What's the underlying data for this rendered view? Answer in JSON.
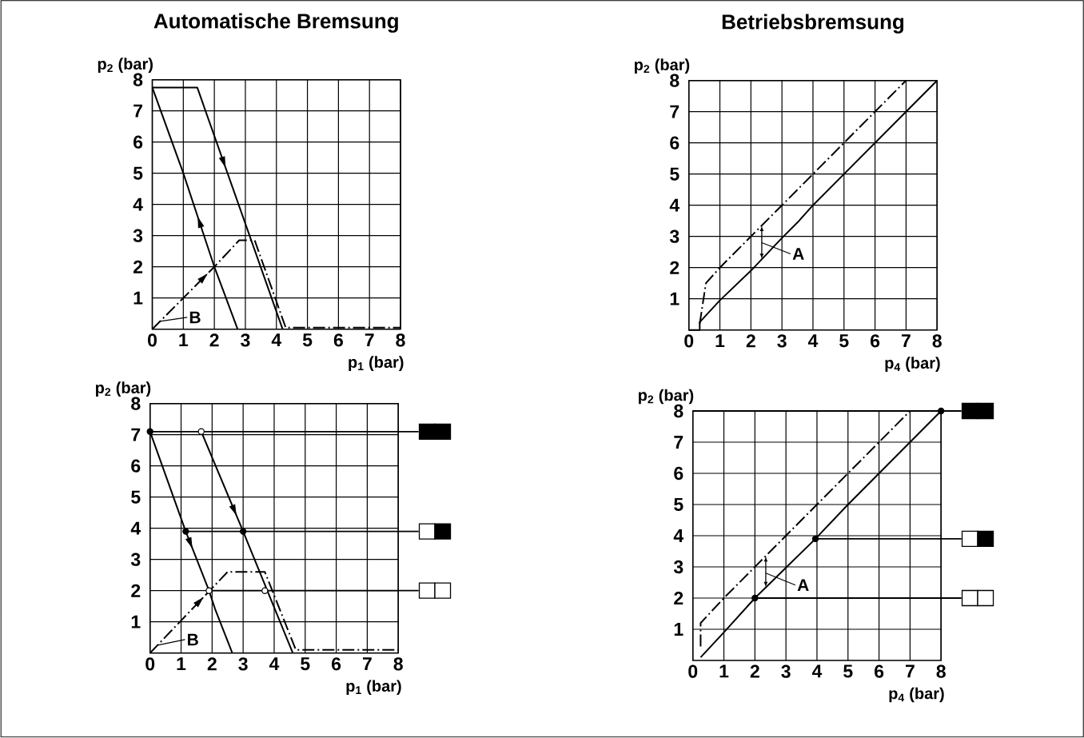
{
  "chart_data": [
    {
      "type": "line",
      "title": "Automatische Bremsung",
      "xlabel": "p$_{1}$ (bar)",
      "ylabel": "p$_{2}$ (bar)",
      "xlim": [
        0,
        8
      ],
      "ylim": [
        0,
        8
      ],
      "xticks": [
        0,
        1,
        2,
        3,
        4,
        5,
        6,
        7,
        8
      ],
      "yticks": [
        1,
        2,
        3,
        4,
        5,
        6,
        7,
        8
      ],
      "grid": true,
      "series": [
        {
          "color": "#000000",
          "line_style": "solid",
          "x": [
            0,
            1.45,
            4.2
          ],
          "values": [
            7.75,
            7.75,
            0
          ]
        },
        {
          "color": "#000000",
          "line_style": "solid",
          "x": [
            0,
            1,
            2,
            2.75
          ],
          "values": [
            7.75,
            5,
            2,
            0
          ]
        },
        {
          "color": "#000000",
          "line_style": "dashdot",
          "x": [
            0,
            2,
            2.8,
            3.3,
            4.3,
            8
          ],
          "values": [
            0,
            2,
            2.85,
            2.85,
            0.05,
            0.05
          ]
        }
      ],
      "annotations": [
        {
          "text": "B",
          "x": 0.25,
          "y": 0.25
        }
      ]
    },
    {
      "type": "line",
      "title": "Betriebsbremsung",
      "xlabel": "p$_{4}$ (bar)",
      "ylabel": "p$_{2}$ (bar)",
      "xlim": [
        0,
        8
      ],
      "ylim": [
        0,
        8
      ],
      "xticks": [
        0,
        1,
        2,
        3,
        4,
        5,
        6,
        7,
        8
      ],
      "yticks": [
        1,
        2,
        3,
        4,
        5,
        6,
        7,
        8
      ],
      "grid": true,
      "series": [
        {
          "color": "#000000",
          "line_style": "solid",
          "x": [
            0,
            0.35,
            0.35,
            1,
            2,
            3,
            3.55,
            4,
            8
          ],
          "values": [
            0,
            0,
            0.25,
            0.95,
            1.9,
            2.95,
            3.5,
            4,
            8
          ]
        },
        {
          "color": "#000000",
          "line_style": "dashdot",
          "x": [
            0.35,
            0.55,
            1,
            7
          ],
          "values": [
            0.2,
            1.5,
            2,
            8
          ]
        }
      ],
      "annotations": [
        "A"
      ]
    },
    {
      "type": "line",
      "xlabel": "p$_{1}$ (bar)",
      "ylabel": "p$_{2}$ (bar)",
      "xlim": [
        0,
        8
      ],
      "ylim": [
        0,
        8
      ],
      "xticks": [
        0,
        1,
        2,
        3,
        4,
        5,
        6,
        7,
        8
      ],
      "yticks": [
        1,
        2,
        3,
        4,
        5,
        6,
        7,
        8
      ],
      "grid": true,
      "series": [
        {
          "color": "#000000",
          "line_style": "solid",
          "x": [
            1.65,
            3,
            4.6
          ],
          "values": [
            7.1,
            3.9,
            0
          ]
        },
        {
          "color": "#000000",
          "line_style": "solid",
          "x": [
            0,
            1.15,
            1.9,
            2.1,
            2.65
          ],
          "values": [
            7.1,
            3.9,
            2,
            1.4,
            0
          ]
        },
        {
          "color": "#000000",
          "line_style": "dashdot",
          "x": [
            0,
            2.5,
            3.7,
            4.7,
            8
          ],
          "values": [
            0,
            2.6,
            2.6,
            0.1,
            0.1
          ]
        },
        {
          "type": "scatter",
          "marker": "circle",
          "color": "#000000",
          "x": [
            0,
            1.15,
            3
          ],
          "values": [
            7.1,
            3.9,
            3.9
          ]
        },
        {
          "type": "scatter",
          "marker": "circle",
          "color": "#ffffff",
          "x": [
            1.65,
            1.9,
            3.7
          ],
          "values": [
            7.1,
            2,
            2
          ]
        }
      ],
      "ref_lines": [
        {
          "axis": "y",
          "value": 7.1,
          "color": "#000000"
        },
        {
          "axis": "y",
          "value": 3.9,
          "color": "#000000"
        },
        {
          "axis": "y",
          "value": 2,
          "color": "#000000"
        }
      ],
      "annotations": [
        {
          "text": "B",
          "x": 0.25,
          "y": 0.25
        }
      ]
    },
    {
      "type": "line",
      "xlabel": "p$_{4}$ (bar)",
      "ylabel": "p$_{2}$ (bar)",
      "xlim": [
        0,
        8
      ],
      "ylim": [
        0,
        8
      ],
      "xticks": [
        0,
        1,
        2,
        3,
        4,
        5,
        6,
        7,
        8
      ],
      "yticks": [
        1,
        2,
        3,
        4,
        5,
        6,
        7,
        8
      ],
      "grid": true,
      "series": [
        {
          "color": "#000000",
          "line_style": "solid",
          "x": [
            0.25,
            1,
            2,
            3.95,
            5,
            8
          ],
          "values": [
            0.1,
            0.9,
            2,
            3.9,
            5,
            8
          ]
        },
        {
          "color": "#000000",
          "line_style": "dashdot",
          "x": [
            0.25,
            0.25,
            1,
            7
          ],
          "values": [
            0.45,
            1.2,
            2,
            8
          ]
        },
        {
          "type": "scatter",
          "marker": "circle",
          "color": "#000000",
          "x": [
            2,
            3.95,
            8
          ],
          "values": [
            2,
            3.9,
            8
          ]
        }
      ],
      "ref_lines": [
        {
          "axis": "y",
          "value": 8,
          "color": "#000000"
        },
        {
          "axis": "y",
          "value": 3.9,
          "color": "#000000"
        },
        {
          "axis": "y",
          "value": 2,
          "color": "#000000"
        }
      ],
      "annotations": [
        "A"
      ]
    }
  ]
}
